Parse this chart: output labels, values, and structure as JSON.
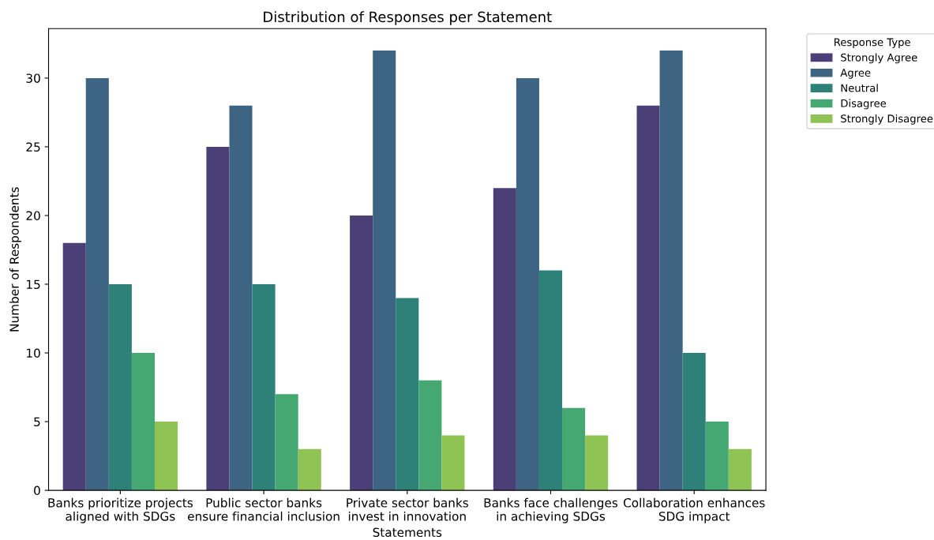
{
  "chart_data": {
    "type": "bar",
    "title": "Distribution of Responses per Statement",
    "xlabel": "Statements",
    "ylabel": "Number of Respondents",
    "legend_title": "Response Type",
    "categories": [
      "Banks prioritize projects\naligned with SDGs",
      "Public sector banks\nensure financial inclusion",
      "Private sector banks\ninvest in innovation",
      "Banks face challenges\nin achieving SDGs",
      "Collaboration enhances\nSDG impact"
    ],
    "series": [
      {
        "name": "Strongly Agree",
        "color": "#4b3f78",
        "values": [
          18,
          25,
          20,
          22,
          28
        ]
      },
      {
        "name": "Agree",
        "color": "#3e6483",
        "values": [
          30,
          28,
          32,
          30,
          32
        ]
      },
      {
        "name": "Neutral",
        "color": "#2e8179",
        "values": [
          15,
          15,
          14,
          16,
          10
        ]
      },
      {
        "name": "Disagree",
        "color": "#45a873",
        "values": [
          10,
          7,
          8,
          6,
          5
        ]
      },
      {
        "name": "Strongly Disagree",
        "color": "#8fc455",
        "values": [
          5,
          3,
          4,
          4,
          3
        ]
      }
    ],
    "ylim": [
      0,
      33.6
    ],
    "yticks": [
      0,
      5,
      10,
      15,
      20,
      25,
      30
    ],
    "grid": false,
    "legend": "top right"
  }
}
